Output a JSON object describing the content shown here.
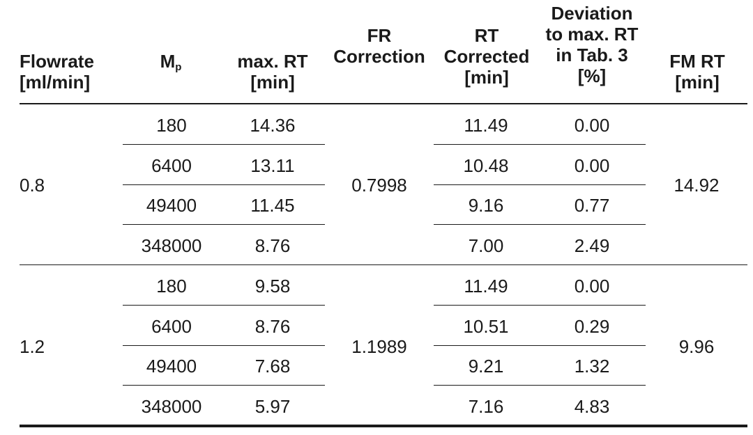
{
  "header": {
    "flowrate": [
      "Flowrate",
      "[ml/min]"
    ],
    "mp": {
      "base": "M",
      "sub": "p"
    },
    "maxrt": [
      "max. RT",
      "[min]"
    ],
    "frcorr": [
      "FR",
      "Correction"
    ],
    "rtcorr": [
      "RT",
      "Corrected",
      "[min]"
    ],
    "deviation": [
      "Deviation",
      "to max. RT",
      "in Tab. 3",
      "[%]"
    ],
    "fmrt": [
      "FM RT",
      "[min]"
    ]
  },
  "groups": [
    {
      "flowrate": "0.8",
      "fr_correction": "0.7998",
      "fm_rt": "14.92",
      "rows": [
        {
          "mp": "180",
          "max_rt": "14.36",
          "rt_corrected": "11.49",
          "deviation": "0.00"
        },
        {
          "mp": "6400",
          "max_rt": "13.11",
          "rt_corrected": "10.48",
          "deviation": "0.00"
        },
        {
          "mp": "49400",
          "max_rt": "11.45",
          "rt_corrected": "9.16",
          "deviation": "0.77"
        },
        {
          "mp": "348000",
          "max_rt": "8.76",
          "rt_corrected": "7.00",
          "deviation": "2.49"
        }
      ]
    },
    {
      "flowrate": "1.2",
      "fr_correction": "1.1989",
      "fm_rt": "9.96",
      "rows": [
        {
          "mp": "180",
          "max_rt": "9.58",
          "rt_corrected": "11.49",
          "deviation": "0.00"
        },
        {
          "mp": "6400",
          "max_rt": "8.76",
          "rt_corrected": "10.51",
          "deviation": "0.29"
        },
        {
          "mp": "49400",
          "max_rt": "7.68",
          "rt_corrected": "9.21",
          "deviation": "1.32"
        },
        {
          "mp": "348000",
          "max_rt": "5.97",
          "rt_corrected": "7.16",
          "deviation": "4.83"
        }
      ]
    }
  ]
}
